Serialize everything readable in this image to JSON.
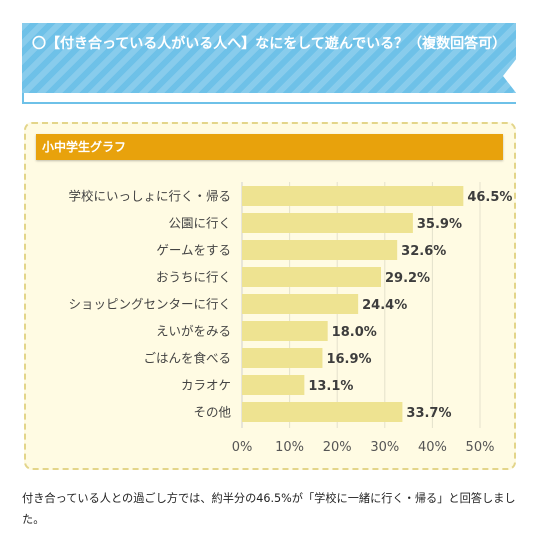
{
  "header": {
    "title": "〇【付き合っている人がいる人へ】なにをして遊んでいる？（複数回答可）"
  },
  "panel": {
    "label": "小中学生グラフ"
  },
  "chart_data": {
    "type": "bar",
    "orientation": "horizontal",
    "categories": [
      "学校にいっしょに行く・帰る",
      "公園に行く",
      "ゲームをする",
      "おうちに行く",
      "ショッピングセンターに行く",
      "えいがをみる",
      "ごはんを食べる",
      "カラオケ",
      "その他"
    ],
    "values": [
      46.5,
      35.9,
      32.6,
      29.2,
      24.4,
      18.0,
      16.9,
      13.1,
      33.7
    ],
    "value_labels": [
      "46.5%",
      "35.9%",
      "32.6%",
      "29.2%",
      "24.4%",
      "18.0%",
      "16.9%",
      "13.1%",
      "33.7%"
    ],
    "xlim": [
      0,
      50
    ],
    "x_ticks": [
      "0%",
      "10%",
      "20%",
      "30%",
      "40%",
      "50%"
    ],
    "grid": true,
    "bar_color": "#eee391",
    "title": "",
    "xlabel": "",
    "ylabel": ""
  },
  "caption": "付き合っている人との過ごし方では、約半分の46.5%が「学校に一緒に行く・帰る」と回答しました。"
}
